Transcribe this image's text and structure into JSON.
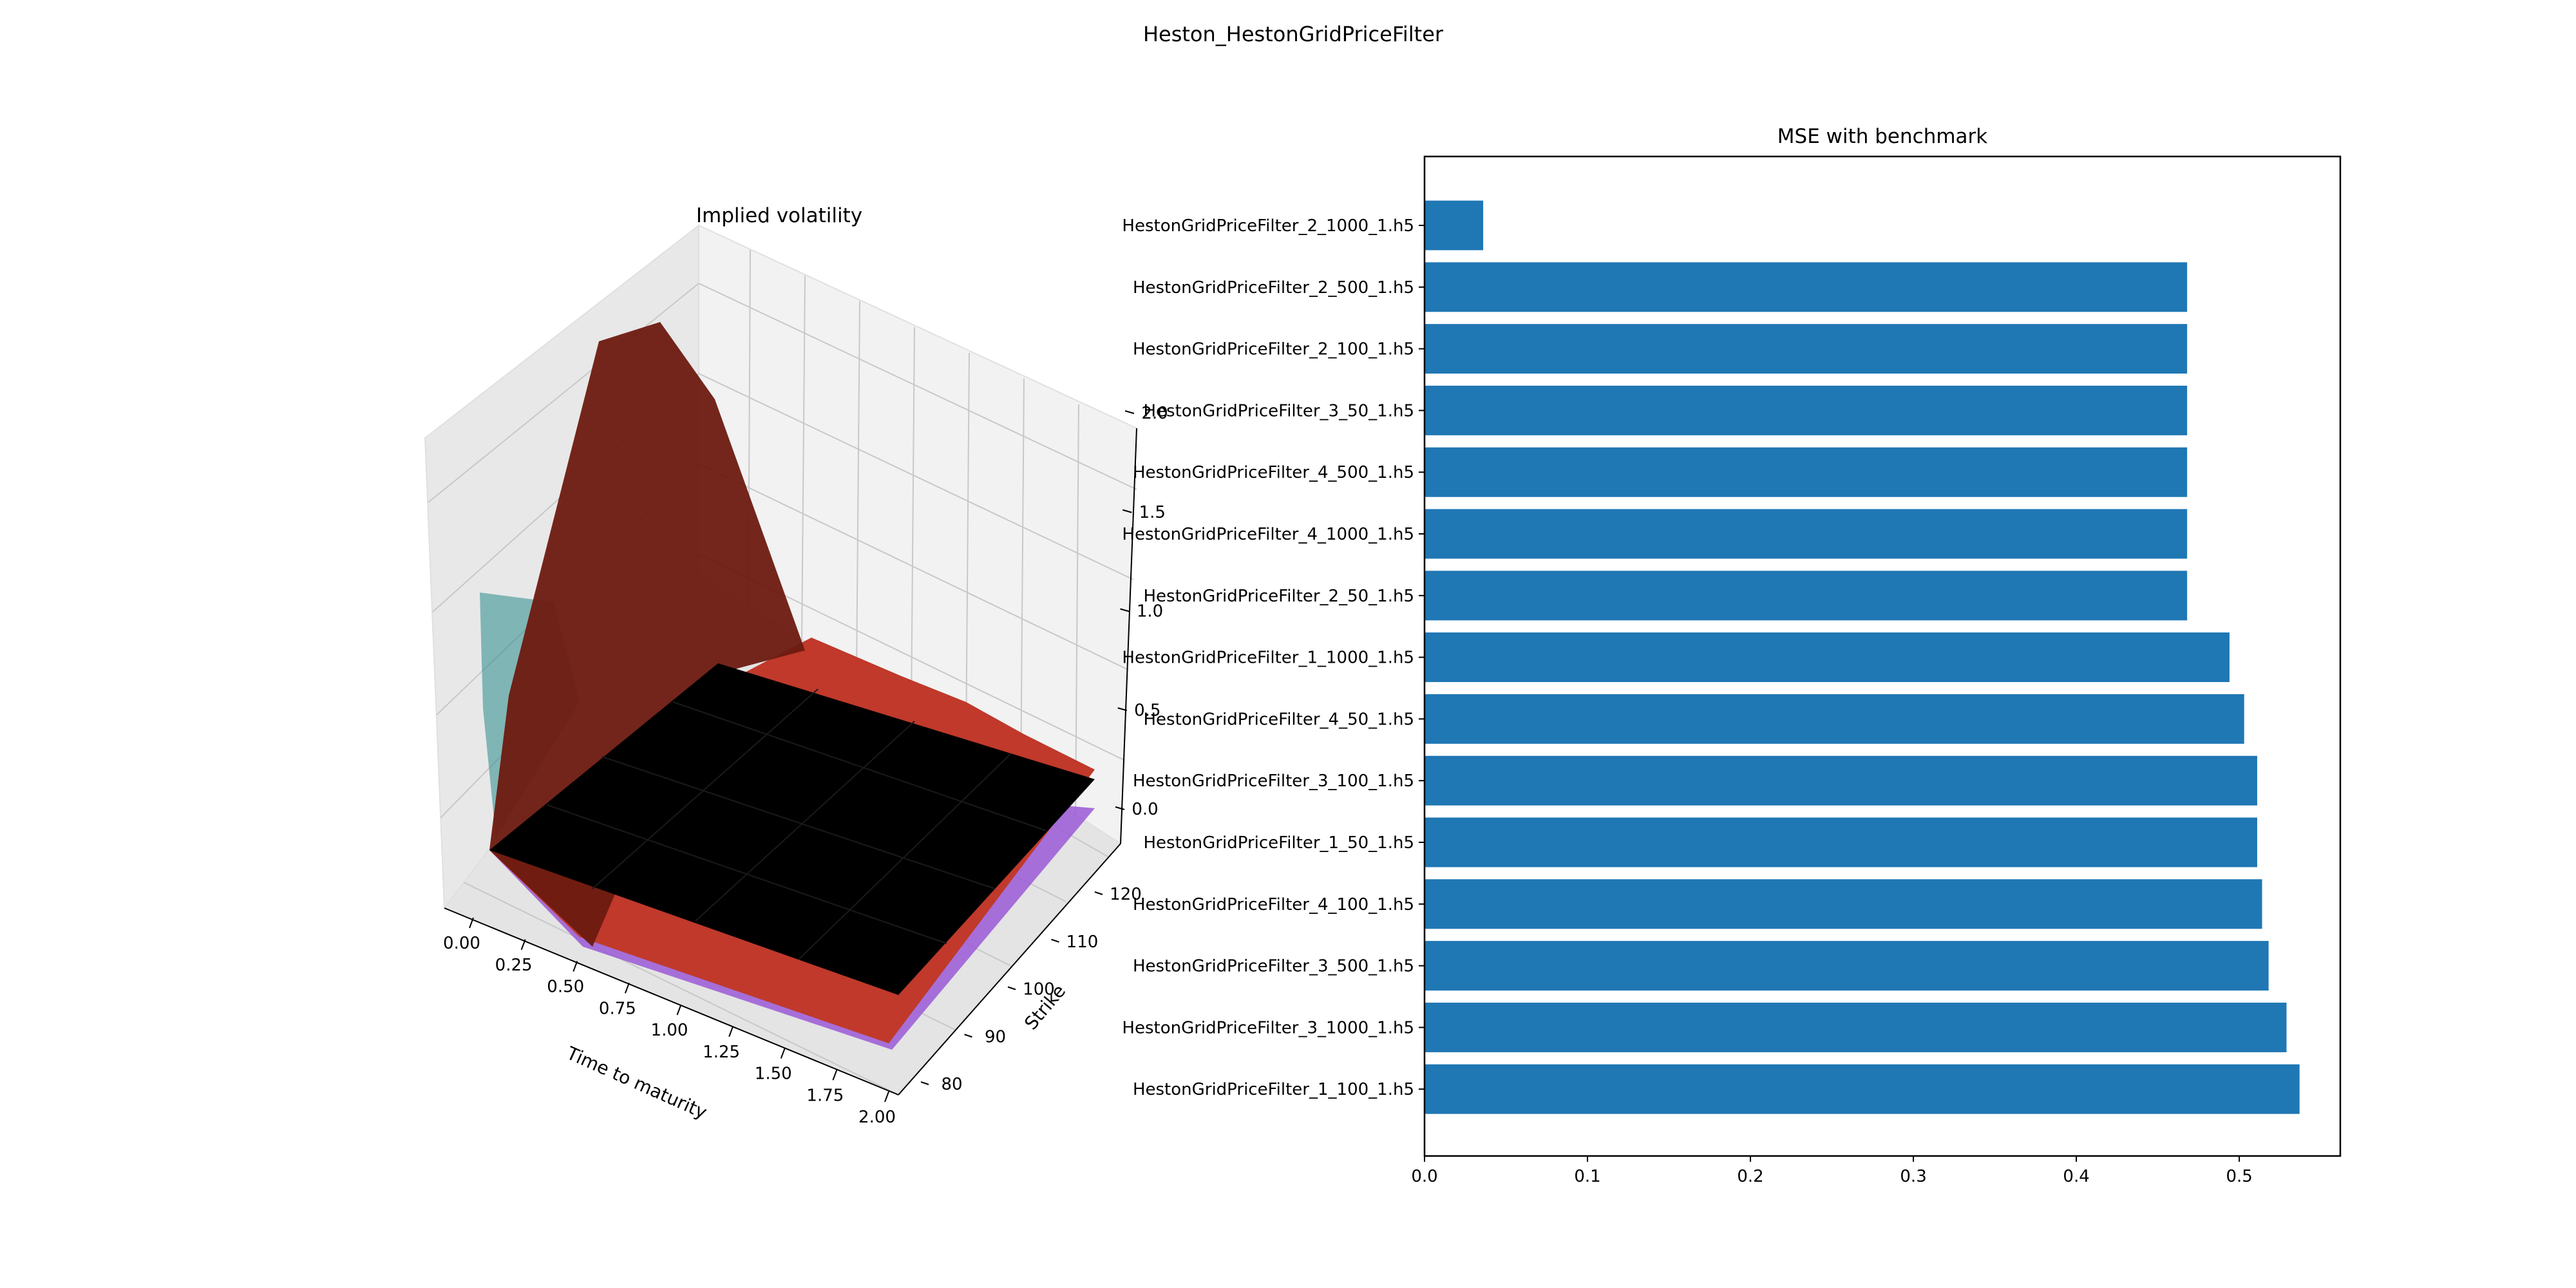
{
  "figure": {
    "suptitle": "Heston_HestonGridPriceFilter"
  },
  "chart_data": [
    {
      "type": "surface3d",
      "title": "Implied volatility",
      "xlabel": "Time to maturity",
      "ylabel": "Strike",
      "zlabel": "",
      "x_ticks": [
        "0.00",
        "0.25",
        "0.50",
        "0.75",
        "1.00",
        "1.25",
        "1.50",
        "1.75",
        "2.00"
      ],
      "y_ticks": [
        "80",
        "90",
        "100",
        "110",
        "120"
      ],
      "z_ticks": [
        "0.0",
        "0.5",
        "1.0",
        "1.5",
        "2.0"
      ],
      "xlim": [
        0,
        2
      ],
      "ylim": [
        75,
        125
      ],
      "zlim": [
        0,
        2.2
      ],
      "grid": true,
      "surfaces": [
        {
          "color": "#9b59d6",
          "desc": "near-flat purple surface"
        },
        {
          "color": "#c0392b",
          "desc": "red surface"
        },
        {
          "color": "#6d1a10",
          "desc": "dark red peaked surface, peak ~2.0 at short maturity"
        },
        {
          "color": "#2a8a8a",
          "desc": "teal translucent surface"
        },
        {
          "color": "#000000",
          "desc": "black flat surface"
        }
      ]
    },
    {
      "type": "bar",
      "orientation": "horizontal",
      "title": "MSE with benchmark",
      "xlabel": "",
      "ylabel": "",
      "xlim": [
        0,
        0.562
      ],
      "x_ticks": [
        "0.0",
        "0.1",
        "0.2",
        "0.3",
        "0.4",
        "0.5"
      ],
      "color": "#1f77b4",
      "categories": [
        "HestonGridPriceFilter_2_1000_1.h5",
        "HestonGridPriceFilter_2_500_1.h5",
        "HestonGridPriceFilter_2_100_1.h5",
        "HestonGridPriceFilter_3_50_1.h5",
        "HestonGridPriceFilter_4_500_1.h5",
        "HestonGridPriceFilter_4_1000_1.h5",
        "HestonGridPriceFilter_2_50_1.h5",
        "HestonGridPriceFilter_1_1000_1.h5",
        "HestonGridPriceFilter_4_50_1.h5",
        "HestonGridPriceFilter_3_100_1.h5",
        "HestonGridPriceFilter_1_50_1.h5",
        "HestonGridPriceFilter_4_100_1.h5",
        "HestonGridPriceFilter_3_500_1.h5",
        "HestonGridPriceFilter_3_1000_1.h5",
        "HestonGridPriceFilter_1_100_1.h5"
      ],
      "values": [
        0.036,
        0.468,
        0.468,
        0.468,
        0.468,
        0.468,
        0.468,
        0.494,
        0.503,
        0.511,
        0.511,
        0.514,
        0.518,
        0.529,
        0.537
      ]
    }
  ]
}
